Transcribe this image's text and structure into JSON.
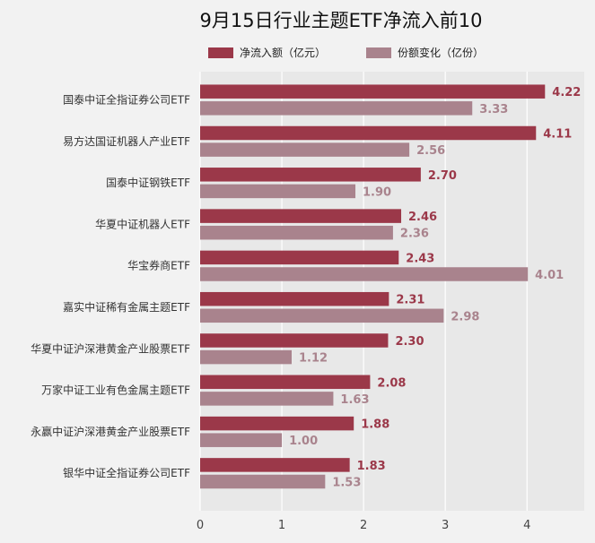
{
  "chart_data": {
    "type": "bar",
    "orientation": "horizontal",
    "title": "9月15日行业主题ETF净流入前10",
    "xlabel": "",
    "ylabel": "",
    "xlim": [
      0,
      4.7
    ],
    "xticks": [
      "0",
      "1",
      "2",
      "3",
      "4"
    ],
    "grid": true,
    "legend_position": "top",
    "categories": [
      "国泰中证全指证券公司ETF",
      "易方达国证机器人产业ETF",
      "国泰中证钢铁ETF",
      "华夏中证机器人ETF",
      "华宝券商ETF",
      "嘉实中证稀有金属主题ETF",
      "华夏中证沪深港黄金产业股票ETF",
      "万家中证工业有色金属主题ETF",
      "永赢中证沪深港黄金产业股票ETF",
      "银华中证全指证券公司ETF"
    ],
    "series": [
      {
        "name": "净流入额（亿元）",
        "color": "#9b3849",
        "values": [
          4.22,
          4.11,
          2.7,
          2.46,
          2.43,
          2.31,
          2.3,
          2.08,
          1.88,
          1.83
        ],
        "labels": [
          "4.22",
          "4.11",
          "2.70",
          "2.46",
          "2.43",
          "2.31",
          "2.30",
          "2.08",
          "1.88",
          "1.83"
        ]
      },
      {
        "name": "份额变化（亿份）",
        "color": "#a9838d",
        "values": [
          3.33,
          2.56,
          1.9,
          2.36,
          4.01,
          2.98,
          1.12,
          1.63,
          1.0,
          1.53
        ],
        "labels": [
          "3.33",
          "2.56",
          "1.90",
          "2.36",
          "4.01",
          "2.98",
          "1.12",
          "1.63",
          "1.00",
          "1.53"
        ]
      }
    ]
  },
  "colors": {
    "background": "#f2f2f2",
    "plot_background": "#e8e8e8",
    "gridline": "#ffffff"
  }
}
